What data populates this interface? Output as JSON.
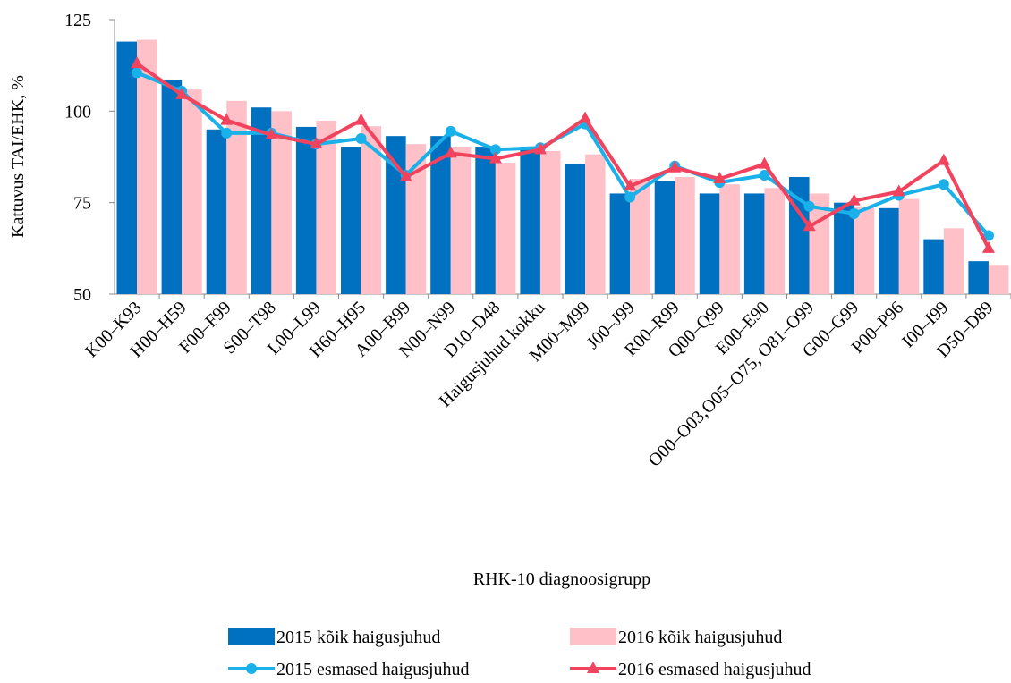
{
  "chart_data": {
    "type": "bar",
    "y_label": "Kattuvus TAI/EHK, %",
    "x_label": "RHK-10 diagnoosigrupp",
    "categories": [
      "K00–K93",
      "H00–H59",
      "F00–F99",
      "S00–T98",
      "L00–L99",
      "H60–H95",
      "A00–B99",
      "N00–N99",
      "D10–D48",
      "Haigusjuhud kokku",
      "M00–M99",
      "J00–J99",
      "R00–R99",
      "Q00–Q99",
      "E00–E90",
      "O00–O03,O05–O75, O81–O99",
      "G00–G99",
      "P00–P96",
      "I00–I99",
      "D50–D89"
    ],
    "series": [
      {
        "name": "2015 kõik haigusjuhud",
        "type": "bar",
        "color": "#0070c0",
        "values": [
          119,
          108.6,
          95,
          101,
          95.7,
          90.3,
          93.2,
          93.2,
          90.3,
          90.3,
          85.5,
          77.5,
          81,
          77.5,
          77.5,
          82,
          75,
          73.5,
          65,
          59
        ]
      },
      {
        "name": "2016 kõik haigusjuhud",
        "type": "bar",
        "color": "#ffc0c8",
        "values": [
          119.5,
          105.9,
          102.8,
          100,
          97.4,
          95.9,
          91,
          90.3,
          85.9,
          89.1,
          88.2,
          81.5,
          82,
          80,
          79,
          77.5,
          74,
          76,
          68,
          58
        ]
      },
      {
        "name": "2015 esmased haigusjuhud",
        "type": "line",
        "marker": "circle",
        "color": "#1ab0ea",
        "values": [
          110.5,
          105.5,
          94,
          94,
          91,
          92.5,
          82.5,
          94.5,
          89.5,
          90,
          96.5,
          76.5,
          85,
          80.5,
          82.5,
          74,
          72,
          77,
          80,
          66
        ]
      },
      {
        "name": "2016 esmased haigusjuhud",
        "type": "line",
        "marker": "triangle",
        "color": "#f2435e",
        "values": [
          113,
          104.5,
          97.5,
          93.5,
          91,
          97.5,
          82,
          88.5,
          87,
          89.5,
          98,
          79.5,
          84.5,
          81.5,
          85.5,
          68.5,
          75.5,
          78,
          86.5,
          62.5
        ]
      }
    ],
    "ylim": [
      50,
      125
    ],
    "yticks": [
      50,
      75,
      100,
      125
    ],
    "grid": false
  }
}
